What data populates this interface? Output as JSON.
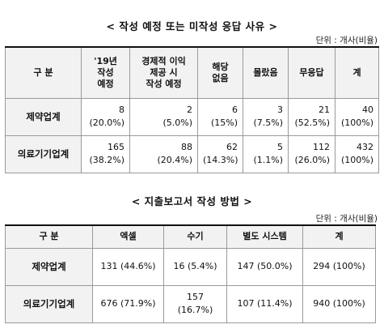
{
  "section1": {
    "title": "< 작성 예정 또는 미작성 응답 사유 >",
    "unit": "단위 : 개사(비율)",
    "headers": [
      [
        "구 분"
      ],
      [
        "'19년",
        "작성",
        "예정"
      ],
      [
        "경제적 이익",
        "제공 시",
        "작성 예정"
      ],
      [
        "해당",
        "없음"
      ],
      [
        "몰랐음"
      ],
      [
        "무응답"
      ],
      [
        "계"
      ]
    ],
    "rows": [
      {
        "label": "제약업계",
        "cells": [
          [
            "8",
            "(20.0%)"
          ],
          [
            "2",
            "(5.0%)"
          ],
          [
            "6",
            "(15%)"
          ],
          [
            "3",
            "(7.5%)"
          ],
          [
            "21",
            "(52.5%)"
          ],
          [
            "40",
            "(100%)"
          ]
        ]
      },
      {
        "label": "의료기기업계",
        "cells": [
          [
            "165",
            "(38.2%)"
          ],
          [
            "88",
            "(20.4%)"
          ],
          [
            "62",
            "(14.3%)"
          ],
          [
            "5",
            "(1.1%)"
          ],
          [
            "112",
            "(26.0%)"
          ],
          [
            "432",
            "(100%)"
          ]
        ]
      }
    ]
  },
  "section2": {
    "title": "< 지출보고서 작성 방법 >",
    "unit": "단위 : 개사(비율)",
    "headers": [
      "구 분",
      "엑셀",
      "수기",
      "별도 시스템",
      "계"
    ],
    "rows": [
      {
        "label": "제약업계",
        "cells": [
          "131  (44.6%)",
          "16  (5.4%)",
          "147  (50.0%)",
          "294  (100%)"
        ]
      },
      {
        "label": "의료기기업계",
        "cells": [
          "676  (71.9%)",
          "157  (16.7%)",
          "107  (11.4%)",
          "940  (100%)"
        ]
      }
    ]
  }
}
